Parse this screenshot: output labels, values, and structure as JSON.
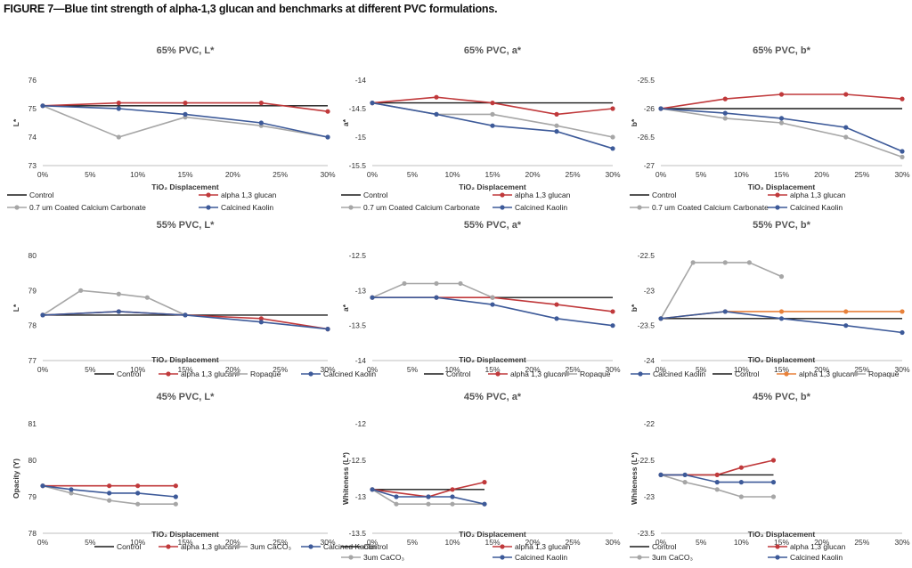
{
  "figure_title": "FIGURE 7—Blue tint strength of alpha-1,3 glucan and benchmarks at different PVC formulations.",
  "colors": {
    "Control": "#1a1a1a",
    "alpha": "#c0393b",
    "alpha_orange": "#e8813a",
    "gray": "#a6a6a6",
    "blue": "#3d5a99"
  },
  "chart_data": [
    {
      "type": "line",
      "title": "65% PVC, L*",
      "xlabel": "TiO₂ Displacement",
      "ylabel": "L*",
      "xlim": [
        0,
        30
      ],
      "ylim": [
        73,
        76
      ],
      "xticks": [
        0,
        5,
        10,
        15,
        20,
        25,
        30
      ],
      "xtick_labels": [
        "0%",
        "5%",
        "10%",
        "15%",
        "20%",
        "25%",
        "30%"
      ],
      "yticks": [
        73,
        74,
        75,
        76
      ],
      "ytick_labels": [
        "73",
        "74",
        "75",
        "76"
      ],
      "legend": [
        [
          "Control",
          "alpha 1,3 glucan"
        ],
        [
          "0.7 um Coated Calcium Carbonate",
          "Calcined Kaolin"
        ]
      ],
      "series": [
        {
          "name": "Control",
          "color_key": "Control",
          "markers": false,
          "x": [
            0,
            30
          ],
          "y": [
            75.1,
            75.1
          ]
        },
        {
          "name": "alpha 1,3 glucan",
          "color_key": "alpha",
          "markers": true,
          "x": [
            0,
            8,
            15,
            23,
            30
          ],
          "y": [
            75.1,
            75.2,
            75.2,
            75.2,
            74.9
          ]
        },
        {
          "name": "0.7 um Coated Calcium Carbonate",
          "color_key": "gray",
          "markers": true,
          "x": [
            0,
            8,
            15,
            23,
            30
          ],
          "y": [
            75.1,
            74.0,
            74.7,
            74.4,
            74.0
          ]
        },
        {
          "name": "Calcined Kaolin",
          "color_key": "blue",
          "markers": true,
          "x": [
            0,
            8,
            15,
            23,
            30
          ],
          "y": [
            75.1,
            75.0,
            74.8,
            74.5,
            74.0
          ]
        }
      ]
    },
    {
      "type": "line",
      "title": "65% PVC, a*",
      "xlabel": "TiO₂ Displacement",
      "ylabel": "a*",
      "xlim": [
        0,
        30
      ],
      "ylim": [
        -15.5,
        -14
      ],
      "xticks": [
        0,
        5,
        10,
        15,
        20,
        25,
        30
      ],
      "xtick_labels": [
        "0%",
        "5%",
        "10%",
        "15%",
        "20%",
        "25%",
        "30%"
      ],
      "yticks": [
        -15.5,
        -15,
        -14.5,
        -14
      ],
      "ytick_labels": [
        "-15.5",
        "-15",
        "-14.5",
        "-14"
      ],
      "legend": [
        [
          "Control",
          "alpha 1,3 glucan"
        ],
        [
          "0.7 um Coated Calcium Carbonate",
          "Calcined Kaolin"
        ]
      ],
      "series": [
        {
          "name": "Control",
          "color_key": "Control",
          "markers": false,
          "x": [
            0,
            30
          ],
          "y": [
            -14.4,
            -14.4
          ]
        },
        {
          "name": "alpha 1,3 glucan",
          "color_key": "alpha",
          "markers": true,
          "x": [
            0,
            8,
            15,
            23,
            30
          ],
          "y": [
            -14.4,
            -14.3,
            -14.4,
            -14.6,
            -14.5
          ]
        },
        {
          "name": "0.7 um Coated Calcium Carbonate",
          "color_key": "gray",
          "markers": true,
          "x": [
            0,
            8,
            15,
            23,
            30
          ],
          "y": [
            -14.4,
            -14.6,
            -14.6,
            -14.8,
            -15.0
          ]
        },
        {
          "name": "Calcined Kaolin",
          "color_key": "blue",
          "markers": true,
          "x": [
            0,
            8,
            15,
            23,
            30
          ],
          "y": [
            -14.4,
            -14.6,
            -14.8,
            -14.9,
            -15.2
          ]
        }
      ]
    },
    {
      "type": "line",
      "title": "65% PVC, b*",
      "xlabel": "TiO₂ Displacement",
      "ylabel": "b*",
      "xlim": [
        0,
        30
      ],
      "ylim": [
        -27,
        -25.5
      ],
      "xticks": [
        0,
        5,
        10,
        15,
        20,
        25,
        30
      ],
      "xtick_labels": [
        "0%",
        "5%",
        "10%",
        "15%",
        "20%",
        "25%",
        "30%"
      ],
      "yticks": [
        -27,
        -26.5,
        -26,
        -25.5
      ],
      "ytick_labels": [
        "-27",
        "-26.5",
        "-26",
        "-25.5"
      ],
      "legend": [
        [
          "Control",
          "alpha 1,3 glucan"
        ],
        [
          "0.7 um Coated Calcium Carbonate",
          "Calcined Kaolin"
        ]
      ],
      "series": [
        {
          "name": "Control",
          "color_key": "Control",
          "markers": false,
          "x": [
            0,
            30
          ],
          "y": [
            -26.0,
            -26.0
          ]
        },
        {
          "name": "alpha 1,3 glucan",
          "color_key": "alpha",
          "markers": true,
          "x": [
            0,
            8,
            15,
            23,
            30
          ],
          "y": [
            -26.0,
            -25.83,
            -25.75,
            -25.75,
            -25.83
          ]
        },
        {
          "name": "0.7 um Coated Calcium Carbonate",
          "color_key": "gray",
          "markers": true,
          "x": [
            0,
            8,
            15,
            23,
            30
          ],
          "y": [
            -26.0,
            -26.17,
            -26.25,
            -26.5,
            -26.85
          ]
        },
        {
          "name": "Calcined Kaolin",
          "color_key": "blue",
          "markers": true,
          "x": [
            0,
            8,
            15,
            23,
            30
          ],
          "y": [
            -26.0,
            -26.08,
            -26.17,
            -26.33,
            -26.75
          ]
        }
      ]
    },
    {
      "type": "line",
      "title": "55% PVC, L*",
      "xlabel": "TiO₂ Displacement",
      "ylabel": "L*",
      "xlim": [
        0,
        30
      ],
      "ylim": [
        77,
        80
      ],
      "xticks": [
        0,
        5,
        10,
        15,
        20,
        25,
        30
      ],
      "xtick_labels": [
        "0%",
        "5%",
        "10%",
        "15%",
        "20%",
        "25%",
        "30%"
      ],
      "yticks": [
        77,
        78,
        79,
        80
      ],
      "ytick_labels": [
        "77",
        "78",
        "79",
        "80"
      ],
      "legend": [
        [
          "Control",
          "alpha 1,3 glucan",
          "Ropaque",
          "Calcined Kaolin"
        ]
      ],
      "series": [
        {
          "name": "Control",
          "color_key": "Control",
          "markers": false,
          "x": [
            0,
            30
          ],
          "y": [
            78.3,
            78.3
          ]
        },
        {
          "name": "alpha 1,3 glucan",
          "color_key": "alpha",
          "markers": true,
          "x": [
            0,
            8,
            15,
            23,
            30
          ],
          "y": [
            78.3,
            78.4,
            78.3,
            78.2,
            77.9
          ]
        },
        {
          "name": "Ropaque",
          "color_key": "gray",
          "markers": true,
          "x": [
            0,
            4,
            8,
            11,
            15
          ],
          "y": [
            78.3,
            79.0,
            78.9,
            78.8,
            78.3
          ]
        },
        {
          "name": "Calcined Kaolin",
          "color_key": "blue",
          "markers": true,
          "x": [
            0,
            8,
            15,
            23,
            30
          ],
          "y": [
            78.3,
            78.4,
            78.3,
            78.1,
            77.9
          ]
        }
      ]
    },
    {
      "type": "line",
      "title": "55% PVC, a*",
      "xlabel": "TiO₂ Displacement",
      "ylabel": "a*",
      "xlim": [
        0,
        30
      ],
      "ylim": [
        -14,
        -12.5
      ],
      "xticks": [
        0,
        5,
        10,
        15,
        20,
        25,
        30
      ],
      "xtick_labels": [
        "0%",
        "5%",
        "10%",
        "15%",
        "20%",
        "25%",
        "30%"
      ],
      "yticks": [
        -14,
        -13.5,
        -13,
        -12.5
      ],
      "ytick_labels": [
        "-14",
        "-13.5",
        "-13",
        "-12.5"
      ],
      "legend": [
        [
          "Control",
          "alpha 1,3 glucan",
          "Ropaque",
          "Calcined Kaolin"
        ]
      ],
      "series": [
        {
          "name": "Control",
          "color_key": "Control",
          "markers": false,
          "x": [
            0,
            30
          ],
          "y": [
            -13.1,
            -13.1
          ]
        },
        {
          "name": "alpha 1,3 glucan",
          "color_key": "alpha",
          "markers": true,
          "x": [
            0,
            8,
            15,
            23,
            30
          ],
          "y": [
            -13.1,
            -13.1,
            -13.1,
            -13.2,
            -13.3
          ]
        },
        {
          "name": "Ropaque",
          "color_key": "gray",
          "markers": true,
          "x": [
            0,
            4,
            8,
            11,
            15
          ],
          "y": [
            -13.1,
            -12.9,
            -12.9,
            -12.9,
            -13.1
          ]
        },
        {
          "name": "Calcined Kaolin",
          "color_key": "blue",
          "markers": true,
          "x": [
            0,
            8,
            15,
            23,
            30
          ],
          "y": [
            -13.1,
            -13.1,
            -13.2,
            -13.4,
            -13.5
          ]
        }
      ]
    },
    {
      "type": "line",
      "title": "55% PVC, b*",
      "xlabel": "TiO₂ Displacement",
      "ylabel": "b*",
      "xlim": [
        0,
        30
      ],
      "ylim": [
        -24,
        -22.5
      ],
      "xticks": [
        0,
        5,
        10,
        15,
        20,
        25,
        30
      ],
      "xtick_labels": [
        "0%",
        "5%",
        "10%",
        "15%",
        "20%",
        "25%",
        "30%"
      ],
      "yticks": [
        -24,
        -23.5,
        -23,
        -22.5
      ],
      "ytick_labels": [
        "-24",
        "-23.5",
        "-23",
        "-22.5"
      ],
      "legend": [
        [
          "Control",
          "alpha 1,3 glucan",
          "Ropaque",
          "Calcined Kaolin"
        ]
      ],
      "series": [
        {
          "name": "Control",
          "color_key": "Control",
          "markers": false,
          "x": [
            0,
            30
          ],
          "y": [
            -23.4,
            -23.4
          ]
        },
        {
          "name": "alpha 1,3 glucan",
          "color_key": "alpha_orange",
          "markers": true,
          "x": [
            0,
            8,
            15,
            23,
            30
          ],
          "y": [
            -23.4,
            -23.3,
            -23.3,
            -23.3,
            -23.3
          ]
        },
        {
          "name": "Ropaque",
          "color_key": "gray",
          "markers": true,
          "x": [
            0,
            4,
            8,
            11,
            15
          ],
          "y": [
            -23.4,
            -22.6,
            -22.6,
            -22.6,
            -22.8
          ]
        },
        {
          "name": "Calcined Kaolin",
          "color_key": "blue",
          "markers": true,
          "x": [
            0,
            8,
            15,
            23,
            30
          ],
          "y": [
            -23.4,
            -23.3,
            -23.4,
            -23.5,
            -23.6
          ]
        }
      ]
    },
    {
      "type": "line",
      "title": "45% PVC, L*",
      "xlabel": "TiO₂ Displacement",
      "ylabel": "Opacity (Y)",
      "xlim": [
        0,
        30
      ],
      "ylim": [
        78,
        81
      ],
      "xticks": [
        0,
        5,
        10,
        15,
        20,
        25,
        30
      ],
      "xtick_labels": [
        "0%",
        "5%",
        "10%",
        "15%",
        "20%",
        "25%",
        "30%"
      ],
      "yticks": [
        78,
        79,
        80,
        81
      ],
      "ytick_labels": [
        "78",
        "79",
        "80",
        "81"
      ],
      "legend": [
        [
          "Control",
          "alpha 1,3 glucan",
          "3um CaCO₃",
          "Calcined Kaolin"
        ]
      ],
      "series": [
        {
          "name": "Control",
          "color_key": "Control",
          "markers": false,
          "x": [
            0,
            14
          ],
          "y": [
            79.3,
            79.3
          ]
        },
        {
          "name": "alpha 1,3 glucan",
          "color_key": "alpha",
          "markers": true,
          "x": [
            0,
            7,
            10,
            14
          ],
          "y": [
            79.3,
            79.3,
            79.3,
            79.3
          ]
        },
        {
          "name": "3um CaCO₃",
          "color_key": "gray",
          "markers": true,
          "x": [
            0,
            3,
            7,
            10,
            14
          ],
          "y": [
            79.3,
            79.1,
            78.9,
            78.8,
            78.8
          ]
        },
        {
          "name": "Calcined Kaolin",
          "color_key": "blue",
          "markers": true,
          "x": [
            0,
            3,
            7,
            10,
            14
          ],
          "y": [
            79.3,
            79.2,
            79.1,
            79.1,
            79.0
          ]
        }
      ]
    },
    {
      "type": "line",
      "title": "45% PVC, a*",
      "xlabel": "TiO₂ Displacement",
      "ylabel": "Whiteness (L*)",
      "xlim": [
        0,
        30
      ],
      "ylim": [
        -13.5,
        -12
      ],
      "xticks": [
        0,
        5,
        10,
        15,
        20,
        25,
        30
      ],
      "xtick_labels": [
        "0%",
        "5%",
        "10%",
        "15%",
        "20%",
        "25%",
        "30%"
      ],
      "yticks": [
        -13.5,
        -13,
        -12.5,
        -12
      ],
      "ytick_labels": [
        "-13.5",
        "-13",
        "-12.5",
        "-12"
      ],
      "legend": [
        [
          "Control",
          "alpha 1,3 glucan"
        ],
        [
          "3um CaCO₃",
          "Calcined Kaolin"
        ]
      ],
      "series": [
        {
          "name": "Control",
          "color_key": "Control",
          "markers": false,
          "x": [
            0,
            14
          ],
          "y": [
            -12.9,
            -12.9
          ]
        },
        {
          "name": "alpha 1,3 glucan",
          "color_key": "alpha",
          "markers": true,
          "x": [
            0,
            7,
            10,
            14
          ],
          "y": [
            -12.9,
            -13.0,
            -12.9,
            -12.8
          ]
        },
        {
          "name": "3um CaCO₃",
          "color_key": "gray",
          "markers": true,
          "x": [
            0,
            3,
            7,
            10,
            14
          ],
          "y": [
            -12.9,
            -13.1,
            -13.1,
            -13.1,
            -13.1
          ]
        },
        {
          "name": "Calcined Kaolin",
          "color_key": "blue",
          "markers": true,
          "x": [
            0,
            3,
            7,
            10,
            14
          ],
          "y": [
            -12.9,
            -13.0,
            -13.0,
            -13.0,
            -13.1
          ]
        }
      ]
    },
    {
      "type": "line",
      "title": "45% PVC, b*",
      "xlabel": "TiO₂ Displacement",
      "ylabel": "Whiteness (L*)",
      "xlim": [
        0,
        30
      ],
      "ylim": [
        -23.5,
        -22
      ],
      "xticks": [
        0,
        5,
        10,
        15,
        20,
        25,
        30
      ],
      "xtick_labels": [
        "0%",
        "5%",
        "10%",
        "15%",
        "20%",
        "25%",
        "30%"
      ],
      "yticks": [
        -23.5,
        -23,
        -22.5,
        -22
      ],
      "ytick_labels": [
        "-23.5",
        "-23",
        "-22.5",
        "-22"
      ],
      "legend": [
        [
          "Control",
          "alpha 1,3 glucan"
        ],
        [
          "3um CaCO₃",
          "Calcined Kaolin"
        ]
      ],
      "series": [
        {
          "name": "Control",
          "color_key": "Control",
          "markers": false,
          "x": [
            0,
            14
          ],
          "y": [
            -22.7,
            -22.7
          ]
        },
        {
          "name": "alpha 1,3 glucan",
          "color_key": "alpha",
          "markers": true,
          "x": [
            0,
            7,
            10,
            14
          ],
          "y": [
            -22.7,
            -22.7,
            -22.6,
            -22.5
          ]
        },
        {
          "name": "3um CaCO₃",
          "color_key": "gray",
          "markers": true,
          "x": [
            0,
            3,
            7,
            10,
            14
          ],
          "y": [
            -22.7,
            -22.8,
            -22.9,
            -23.0,
            -23.0
          ]
        },
        {
          "name": "Calcined Kaolin",
          "color_key": "blue",
          "markers": true,
          "x": [
            0,
            3,
            7,
            10,
            14
          ],
          "y": [
            -22.7,
            -22.7,
            -22.8,
            -22.8,
            -22.8
          ]
        }
      ]
    }
  ]
}
